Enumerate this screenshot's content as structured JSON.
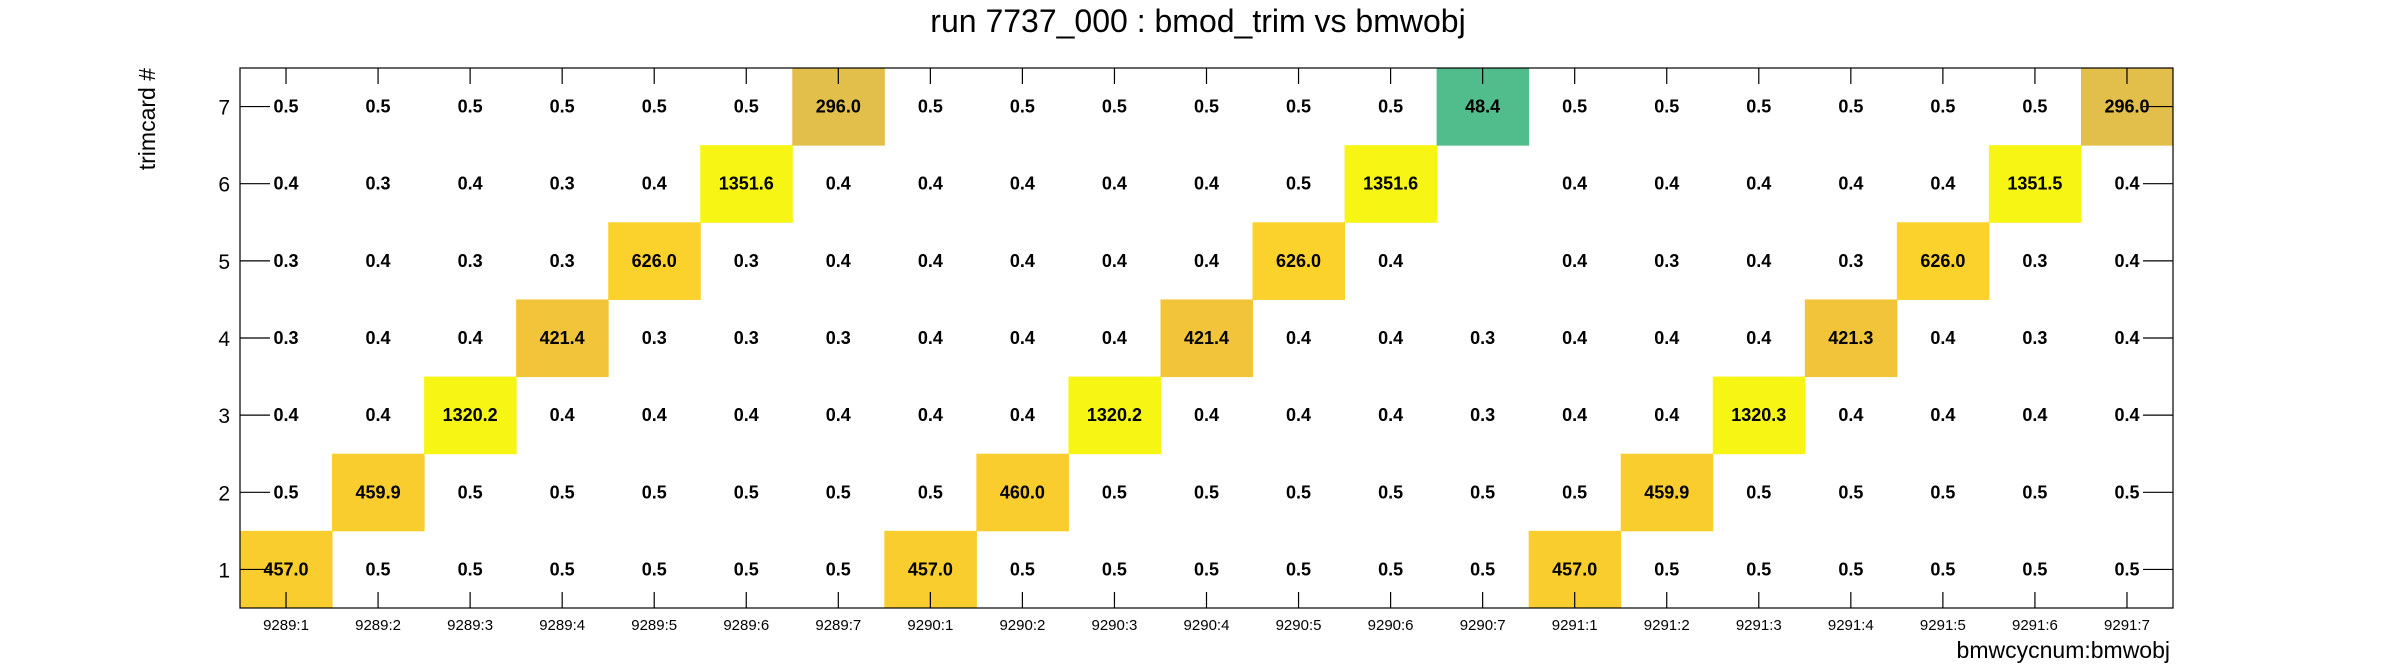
{
  "chart_data": {
    "type": "heatmap",
    "title": "run 7737_000 : bmod_trim vs bmwobj",
    "xlabel": "bmwcycnum:bmwobj",
    "ylabel": "trimcard #",
    "x_categories": [
      "9289:1",
      "9289:2",
      "9289:3",
      "9289:4",
      "9289:5",
      "9289:6",
      "9289:7",
      "9290:1",
      "9290:2",
      "9290:3",
      "9290:4",
      "9290:5",
      "9290:6",
      "9290:7",
      "9291:1",
      "9291:2",
      "9291:3",
      "9291:4",
      "9291:5",
      "9291:6",
      "9291:7"
    ],
    "y_categories": [
      "1",
      "2",
      "3",
      "4",
      "5",
      "6",
      "7"
    ],
    "values": {
      "7": [
        "0.5",
        "0.5",
        "0.5",
        "0.5",
        "0.5",
        "0.5",
        "296.0",
        "0.5",
        "0.5",
        "0.5",
        "0.5",
        "0.5",
        "0.5",
        "48.4",
        "0.5",
        "0.5",
        "0.5",
        "0.5",
        "0.5",
        "0.5",
        "296.0"
      ],
      "6": [
        "0.4",
        "0.3",
        "0.4",
        "0.3",
        "0.4",
        "1351.6",
        "0.4",
        "0.4",
        "0.4",
        "0.4",
        "0.4",
        "0.5",
        "1351.6",
        "",
        "0.4",
        "0.4",
        "0.4",
        "0.4",
        "0.4",
        "1351.5",
        "0.4"
      ],
      "5": [
        "0.3",
        "0.4",
        "0.3",
        "0.3",
        "626.0",
        "0.3",
        "0.4",
        "0.4",
        "0.4",
        "0.4",
        "0.4",
        "626.0",
        "0.4",
        "",
        "0.4",
        "0.3",
        "0.4",
        "0.3",
        "626.0",
        "0.3",
        "0.4"
      ],
      "4": [
        "0.3",
        "0.4",
        "0.4",
        "421.4",
        "0.3",
        "0.3",
        "0.3",
        "0.4",
        "0.4",
        "0.4",
        "421.4",
        "0.4",
        "0.4",
        "0.3",
        "0.4",
        "0.4",
        "0.4",
        "421.3",
        "0.4",
        "0.3",
        "0.4"
      ],
      "3": [
        "0.4",
        "0.4",
        "1320.2",
        "0.4",
        "0.4",
        "0.4",
        "0.4",
        "0.4",
        "0.4",
        "1320.2",
        "0.4",
        "0.4",
        "0.4",
        "0.3",
        "0.4",
        "0.4",
        "1320.3",
        "0.4",
        "0.4",
        "0.4",
        "0.4"
      ],
      "2": [
        "0.5",
        "459.9",
        "0.5",
        "0.5",
        "0.5",
        "0.5",
        "0.5",
        "0.5",
        "460.0",
        "0.5",
        "0.5",
        "0.5",
        "0.5",
        "0.5",
        "0.5",
        "459.9",
        "0.5",
        "0.5",
        "0.5",
        "0.5",
        "0.5"
      ],
      "1": [
        "457.0",
        "0.5",
        "0.5",
        "0.5",
        "0.5",
        "0.5",
        "0.5",
        "457.0",
        "0.5",
        "0.5",
        "0.5",
        "0.5",
        "0.5",
        "0.5",
        "457.0",
        "0.5",
        "0.5",
        "0.5",
        "0.5",
        "0.5",
        "0.5"
      ]
    },
    "colors": {
      "296.0": "#e2be4a",
      "48.4": "#52bd8c",
      "1351.6": "#f6f514",
      "1351.5": "#f6f514",
      "1320.2": "#f6f514",
      "1320.3": "#f6f514",
      "626.0": "#fbd12c",
      "421.4": "#f1c43a",
      "421.3": "#f1c43a",
      "459.9": "#f9cd2e",
      "460.0": "#f9cd2e",
      "457.0": "#f9cd2e"
    },
    "grid": false,
    "legend": "none"
  }
}
